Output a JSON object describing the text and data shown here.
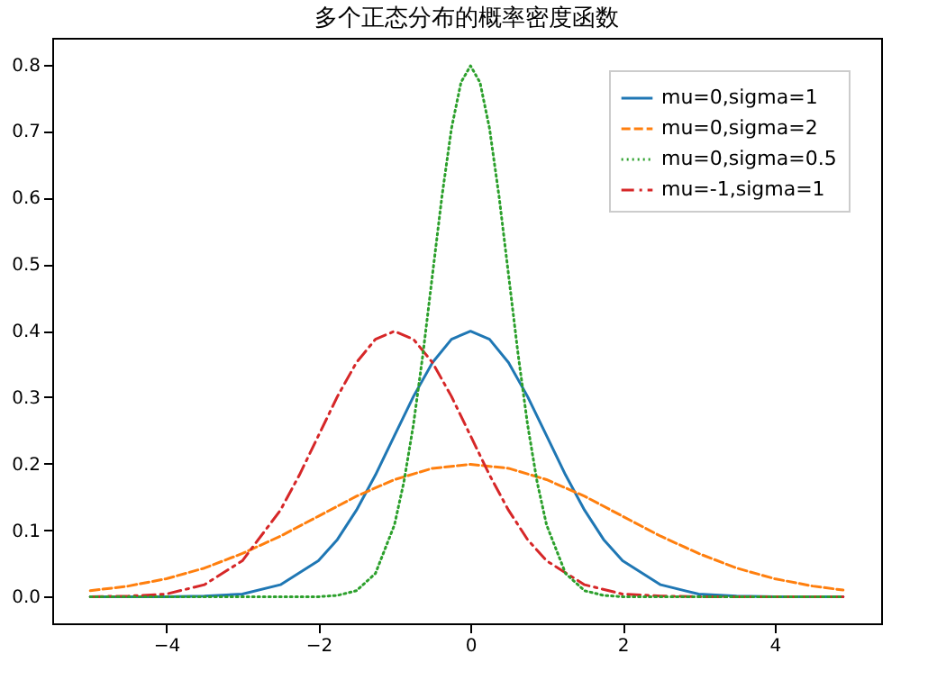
{
  "chart_data": {
    "type": "line",
    "title": "多个正态分布的概率密度函数",
    "xlim": [
      -5.5,
      5.4
    ],
    "ylim": [
      -0.04,
      0.84
    ],
    "xticks": [
      -4,
      -2,
      0,
      2,
      4
    ],
    "yticks": [
      {
        "value": 0,
        "label": "0.0"
      },
      0.1,
      0.2,
      0.3,
      0.4,
      0.5,
      0.6,
      0.7,
      0.8
    ],
    "grid": false,
    "legend": "top right",
    "marker": "none",
    "series": [
      {
        "name": "mu=0,sigma=1",
        "color": "#1f77b4",
        "line_style": "solid",
        "x": [
          -5,
          -4.5,
          -4,
          -3.5,
          -3,
          -2.5,
          -2,
          -1.75,
          -1.5,
          -1.25,
          -1,
          -0.75,
          -0.5,
          -0.25,
          0,
          0.25,
          0.5,
          0.75,
          1,
          1.25,
          1.5,
          1.75,
          2,
          2.5,
          3,
          3.5,
          4,
          4.5,
          4.9
        ],
        "values": [
          0,
          0,
          0,
          0.001,
          0.004,
          0.018,
          0.054,
          0.086,
          0.13,
          0.183,
          0.242,
          0.301,
          0.352,
          0.387,
          0.399,
          0.387,
          0.352,
          0.301,
          0.242,
          0.183,
          0.13,
          0.086,
          0.054,
          0.018,
          0.004,
          0.001,
          0,
          0,
          0
        ]
      },
      {
        "name": "mu=0,sigma=2",
        "color": "#ff7f0e",
        "line_style": "dashed",
        "x": [
          -5,
          -4.5,
          -4,
          -3.5,
          -3,
          -2.5,
          -2,
          -1.5,
          -1,
          -0.5,
          0,
          0.5,
          1,
          1.5,
          2,
          2.5,
          3,
          3.5,
          4,
          4.5,
          4.9
        ],
        "values": [
          0.009,
          0.016,
          0.027,
          0.043,
          0.065,
          0.091,
          0.121,
          0.151,
          0.176,
          0.193,
          0.199,
          0.193,
          0.176,
          0.151,
          0.121,
          0.091,
          0.065,
          0.043,
          0.027,
          0.016,
          0.01
        ]
      },
      {
        "name": "mu=0,sigma=0.5",
        "color": "#2ca02c",
        "line_style": "dotted",
        "x": [
          -5,
          -2,
          -1.75,
          -1.5,
          -1.25,
          -1,
          -0.875,
          -0.75,
          -0.625,
          -0.5,
          -0.375,
          -0.25,
          -0.125,
          0,
          0.125,
          0.25,
          0.375,
          0.5,
          0.625,
          0.75,
          0.875,
          1,
          1.25,
          1.5,
          1.75,
          2,
          4.9
        ],
        "values": [
          0,
          0,
          0.002,
          0.009,
          0.035,
          0.108,
          0.173,
          0.259,
          0.365,
          0.484,
          0.602,
          0.704,
          0.773,
          0.798,
          0.773,
          0.704,
          0.602,
          0.484,
          0.365,
          0.259,
          0.173,
          0.108,
          0.035,
          0.009,
          0.002,
          0,
          0
        ]
      },
      {
        "name": "mu=-1,sigma=1",
        "color": "#d62728",
        "line_style": "dashdot",
        "x": [
          -5,
          -4.5,
          -4,
          -3.5,
          -3,
          -2.5,
          -2.25,
          -2,
          -1.75,
          -1.5,
          -1.25,
          -1,
          -0.75,
          -0.5,
          -0.25,
          0,
          0.25,
          0.5,
          0.75,
          1,
          1.5,
          2,
          2.5,
          3,
          4.9
        ],
        "values": [
          0,
          0.001,
          0.004,
          0.018,
          0.054,
          0.13,
          0.183,
          0.242,
          0.301,
          0.352,
          0.387,
          0.399,
          0.387,
          0.352,
          0.301,
          0.242,
          0.183,
          0.13,
          0.086,
          0.054,
          0.018,
          0.004,
          0.001,
          0,
          0
        ]
      }
    ]
  }
}
